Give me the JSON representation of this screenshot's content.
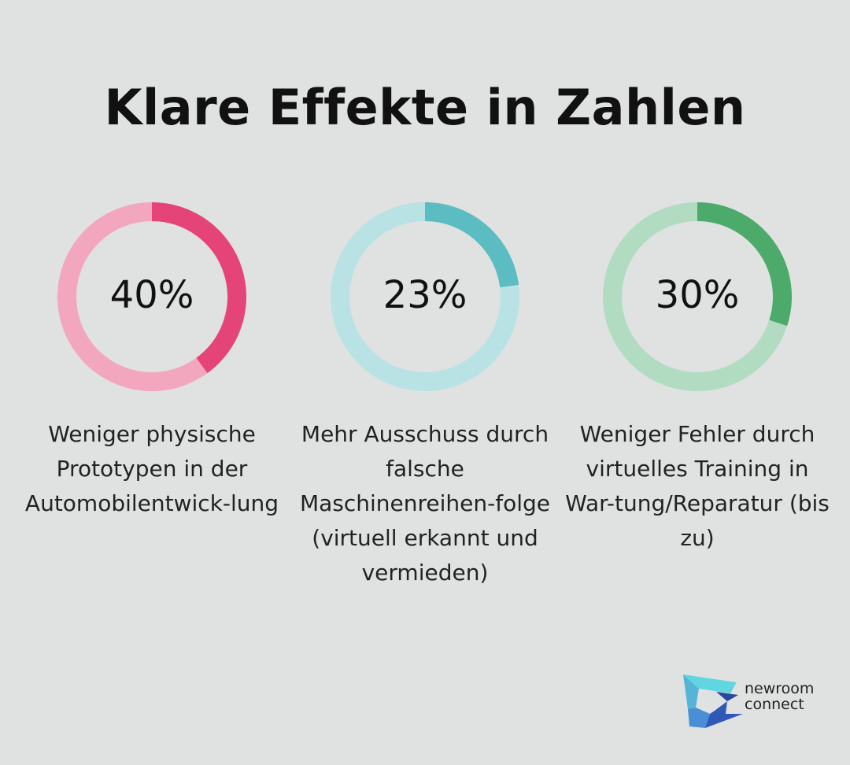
{
  "title": "Klare Effekte in Zahlen",
  "chart_data": {
    "type": "pie",
    "variant": "donut",
    "items": [
      {
        "label": "40%",
        "value": 40,
        "description": "Weniger physische Prototypen in der Automobilentwick-lung",
        "color": "#e54478",
        "track_color": "#f2a7bf"
      },
      {
        "label": "23%",
        "value": 23,
        "description": "Mehr Ausschuss durch falsche Maschinenreihen-folge (virtuell erkannt und vermieden)",
        "color": "#5bbcc2",
        "track_color": "#b9e2e4"
      },
      {
        "label": "30%",
        "value": 30,
        "description": "Weniger Fehler durch virtuelles Training in War-tung/Reparatur (bis zu)",
        "color": "#4caa6b",
        "track_color": "#b1dcc1"
      }
    ]
  },
  "logo": {
    "line1": "newroom",
    "line2": "connect"
  }
}
